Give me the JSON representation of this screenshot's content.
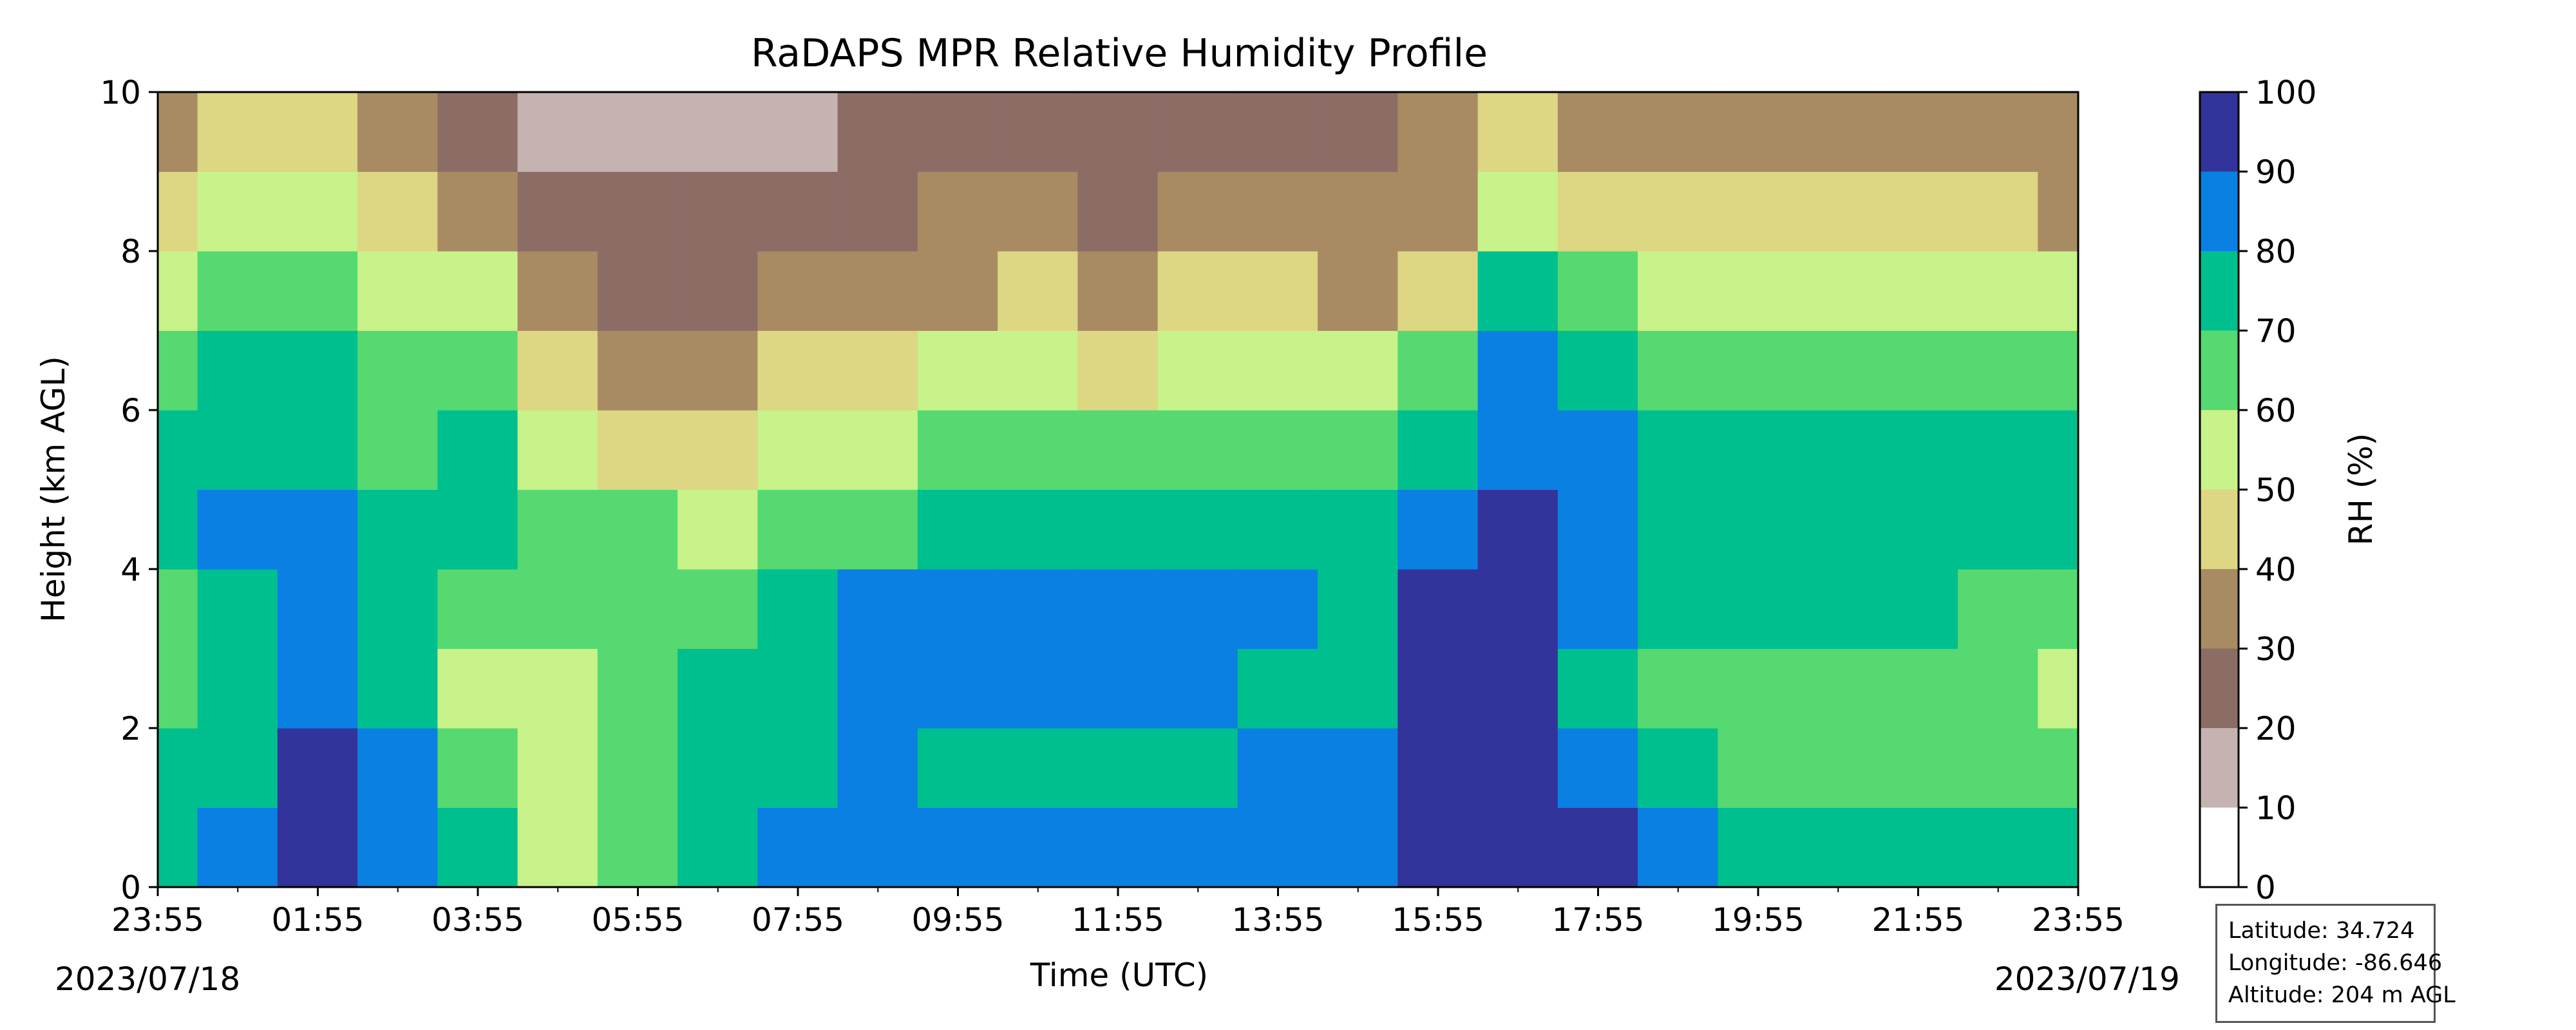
{
  "chart_data": {
    "type": "heatmap",
    "title": "RaDAPS MPR Relative Humidity Profile",
    "xlabel": "Time (UTC)",
    "ylabel": "Height (km AGL)",
    "x_tick_labels": [
      "23:55",
      "01:55",
      "03:55",
      "05:55",
      "07:55",
      "09:55",
      "11:55",
      "13:55",
      "15:55",
      "17:55",
      "19:55",
      "21:55",
      "23:55"
    ],
    "x_range_hours": [
      0,
      24
    ],
    "start_date": "2023/07/18",
    "end_date": "2023/07/19",
    "y_ticks": [
      0,
      2,
      4,
      6,
      8,
      10
    ],
    "ylim": [
      0,
      10
    ],
    "colorbar": {
      "label": "RH (%)",
      "levels": [
        0,
        10,
        20,
        30,
        40,
        50,
        60,
        70,
        80,
        90,
        100
      ],
      "colors": [
        "#ffffff",
        "#c4b3b0",
        "#8c6d66",
        "#a88b62",
        "#ddd683",
        "#c8f28a",
        "#56d970",
        "#00bf8f",
        "#0a80e2",
        "#32349b"
      ]
    },
    "rh_samples": {
      "times_utc_hours": [
        0,
        1,
        2,
        3,
        4,
        5,
        6,
        7,
        8,
        9,
        10,
        11,
        12,
        13,
        14,
        15,
        16,
        17,
        18,
        19,
        20,
        21,
        22,
        23,
        24
      ],
      "heights_km": [
        0.5,
        1.5,
        2.5,
        3.5,
        4.5,
        5.5,
        6.5,
        7.5,
        8.5,
        9.5
      ],
      "rh_percent": [
        [
          75,
          72,
          65,
          67,
          72,
          70,
          65,
          58,
          45,
          35
        ],
        [
          85,
          78,
          75,
          78,
          80,
          78,
          70,
          60,
          50,
          42
        ],
        [
          95,
          92,
          88,
          85,
          82,
          78,
          70,
          65,
          55,
          48
        ],
        [
          88,
          82,
          75,
          72,
          70,
          68,
          62,
          55,
          48,
          38
        ],
        [
          75,
          62,
          58,
          65,
          70,
          75,
          65,
          50,
          35,
          22
        ],
        [
          58,
          55,
          58,
          62,
          65,
          58,
          45,
          35,
          25,
          18
        ],
        [
          68,
          65,
          62,
          65,
          60,
          48,
          38,
          28,
          20,
          15
        ],
        [
          75,
          72,
          70,
          68,
          58,
          45,
          35,
          27,
          20,
          15
        ],
        [
          80,
          78,
          78,
          75,
          65,
          52,
          40,
          30,
          23,
          18
        ],
        [
          82,
          80,
          80,
          82,
          68,
          58,
          45,
          35,
          28,
          22
        ],
        [
          85,
          75,
          80,
          82,
          70,
          60,
          50,
          38,
          30,
          25
        ],
        [
          82,
          72,
          80,
          82,
          72,
          62,
          52,
          40,
          30,
          25
        ],
        [
          82,
          75,
          82,
          82,
          70,
          60,
          48,
          36,
          28,
          23
        ],
        [
          85,
          78,
          80,
          80,
          72,
          62,
          52,
          40,
          32,
          26
        ],
        [
          85,
          82,
          78,
          80,
          72,
          62,
          52,
          40,
          32,
          26
        ],
        [
          85,
          82,
          75,
          75,
          70,
          62,
          50,
          38,
          30,
          25
        ],
        [
          95,
          95,
          95,
          90,
          82,
          72,
          60,
          45,
          35,
          30
        ],
        [
          95,
          95,
          92,
          95,
          92,
          88,
          82,
          70,
          55,
          45
        ],
        [
          90,
          85,
          78,
          80,
          85,
          82,
          72,
          60,
          45,
          35
        ],
        [
          80,
          70,
          62,
          70,
          75,
          72,
          62,
          50,
          40,
          32
        ],
        [
          72,
          62,
          62,
          70,
          75,
          75,
          65,
          55,
          42,
          35
        ],
        [
          72,
          62,
          60,
          70,
          75,
          72,
          65,
          55,
          42,
          35
        ],
        [
          72,
          62,
          62,
          70,
          72,
          72,
          62,
          52,
          40,
          32
        ],
        [
          75,
          60,
          60,
          68,
          70,
          72,
          65,
          52,
          40,
          32
        ],
        [
          75,
          60,
          55,
          68,
          72,
          72,
          65,
          52,
          38,
          30
        ]
      ]
    }
  },
  "info_box": {
    "latitude": "Latitude: 34.724",
    "longitude": "Longitude: -86.646",
    "altitude": "Altitude: 204 m AGL"
  }
}
